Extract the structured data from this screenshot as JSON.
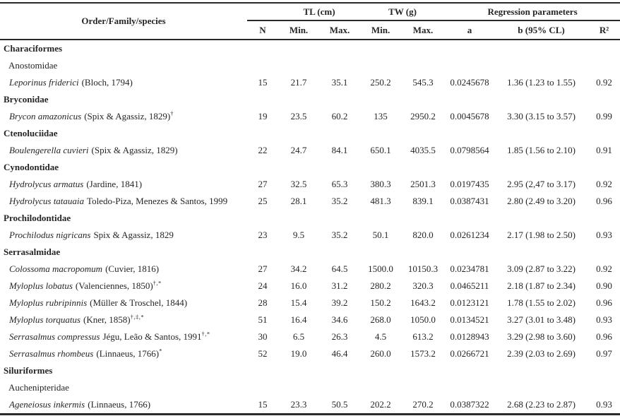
{
  "table": {
    "header": {
      "species": "Order/Family/species",
      "groups": {
        "tl": "TL (cm)",
        "tw": "TW (g)",
        "regression": "Regression parameters"
      },
      "cols": {
        "n": "N",
        "tl_min": "Min.",
        "tl_max": "Max.",
        "tw_min": "Min.",
        "tw_max": "Max.",
        "a": "a",
        "b": "b (95% CL)",
        "r2": "R²"
      }
    },
    "rows": [
      {
        "kind": "order",
        "name": "Characiformes"
      },
      {
        "kind": "family",
        "name": "Anostomidae",
        "bold": false
      },
      {
        "kind": "species",
        "name": "Leporinus friderici",
        "author": "(Bloch, 1794)",
        "marker": "",
        "n": "15",
        "tl_min": "21.7",
        "tl_max": "35.1",
        "tw_min": "250.2",
        "tw_max": "545.3",
        "a": "0.0245678",
        "b": "1.36 (1.23 to 1.55)",
        "r2": "0.92"
      },
      {
        "kind": "family",
        "name": "Bryconidae",
        "bold": true
      },
      {
        "kind": "species",
        "name": "Brycon amazonicus",
        "author": "(Spix & Agassiz, 1829)",
        "marker": "†",
        "n": "19",
        "tl_min": "23.5",
        "tl_max": "60.2",
        "tw_min": "135",
        "tw_max": "2950.2",
        "a": "0.0045678",
        "b": "3.30 (3.15 to 3.57)",
        "r2": "0.99"
      },
      {
        "kind": "family",
        "name": "Ctenoluciidae",
        "bold": true
      },
      {
        "kind": "species",
        "name": "Boulengerella cuvieri",
        "author": "(Spix & Agassiz, 1829)",
        "marker": "",
        "n": "22",
        "tl_min": "24.7",
        "tl_max": "84.1",
        "tw_min": "650.1",
        "tw_max": "4035.5",
        "a": "0.0798564",
        "b": "1.85 (1.56 to 2.10)",
        "r2": "0.91"
      },
      {
        "kind": "family",
        "name": "Cynodontidae",
        "bold": true
      },
      {
        "kind": "species",
        "name": "Hydrolycus armatus",
        "author": "(Jardine, 1841)",
        "marker": "",
        "n": "27",
        "tl_min": "32.5",
        "tl_max": "65.3",
        "tw_min": "380.3",
        "tw_max": "2501.3",
        "a": "0.0197435",
        "b": "2.95 (2,47 to 3.17)",
        "r2": "0.92"
      },
      {
        "kind": "species",
        "name": "Hydrolycus tatauaia",
        "author": "Toledo-Piza, Menezes & Santos, 1999",
        "marker": "",
        "n": "25",
        "tl_min": "28.1",
        "tl_max": "35.2",
        "tw_min": "481.3",
        "tw_max": "839.1",
        "a": "0.0387431",
        "b": "2.80 (2.49 to 3.20)",
        "r2": "0.96"
      },
      {
        "kind": "family",
        "name": "Prochilodontidae",
        "bold": true
      },
      {
        "kind": "species",
        "name": "Prochilodus nigricans",
        "author": "Spix & Agassiz, 1829",
        "marker": "",
        "n": "23",
        "tl_min": "9.5",
        "tl_max": "35.2",
        "tw_min": "50.1",
        "tw_max": "820.0",
        "a": "0.0261234",
        "b": "2.17 (1.98 to 2.50)",
        "r2": "0.93"
      },
      {
        "kind": "family",
        "name": "Serrasalmidae",
        "bold": true
      },
      {
        "kind": "species",
        "name": "Colossoma macropomum",
        "author": "(Cuvier, 1816)",
        "marker": "",
        "n": "27",
        "tl_min": "34.2",
        "tl_max": "64.5",
        "tw_min": "1500.0",
        "tw_max": "10150.3",
        "a": "0.0234781",
        "b": "3.09 (2.87 to 3.22)",
        "r2": "0.92"
      },
      {
        "kind": "species",
        "name": "Myloplus lobatus",
        "author": "(Valenciennes, 1850)",
        "marker": "†,*",
        "n": "24",
        "tl_min": "16.0",
        "tl_max": "31.2",
        "tw_min": "280.2",
        "tw_max": "320.3",
        "a": "0.0465211",
        "b": "2.18 (1.87 to 2.34)",
        "r2": "0.90"
      },
      {
        "kind": "species",
        "name": "Myloplus rubripinnis",
        "author": "(Müller & Troschel, 1844)",
        "marker": "",
        "n": "28",
        "tl_min": "15.4",
        "tl_max": "39.2",
        "tw_min": "150.2",
        "tw_max": "1643.2",
        "a": "0.0123121",
        "b": "1.78 (1.55 to 2.02)",
        "r2": "0.96"
      },
      {
        "kind": "species",
        "name": "Myloplus torquatus",
        "author": "(Kner, 1858)",
        "marker": "†,‡,*",
        "n": "51",
        "tl_min": "16.4",
        "tl_max": "34.6",
        "tw_min": "268.0",
        "tw_max": "1050.0",
        "a": "0.0134521",
        "b": "3.27 (3.01 to 3.48)",
        "r2": "0.93"
      },
      {
        "kind": "species",
        "name": "Serrasalmus compressus",
        "author": "Jégu, Leão & Santos, 1991",
        "marker": "†,*",
        "n": "30",
        "tl_min": "6.5",
        "tl_max": "26.3",
        "tw_min": "4.5",
        "tw_max": "613.2",
        "a": "0.0128943",
        "b": "3.29 (2.98 to 3.60)",
        "r2": "0.96"
      },
      {
        "kind": "species",
        "name": "Serrasalmus rhombeus",
        "author": "(Linnaeus, 1766)",
        "marker": "*",
        "n": "52",
        "tl_min": "19.0",
        "tl_max": "46.4",
        "tw_min": "260.0",
        "tw_max": "1573.2",
        "a": "0.0266721",
        "b": "2.39 (2.03 to 2.69)",
        "r2": "0.97"
      },
      {
        "kind": "order",
        "name": "Siluriformes"
      },
      {
        "kind": "family",
        "name": "Auchenipteridae",
        "bold": false
      },
      {
        "kind": "species",
        "name": "Ageneiosus inkermis",
        "author": "(Linnaeus, 1766)",
        "marker": "",
        "n": "15",
        "tl_min": "23.3",
        "tl_max": "50.5",
        "tw_min": "202.2",
        "tw_max": "270.2",
        "a": "0.0387322",
        "b": "2.68 (2.23 to 2.87)",
        "r2": "0.93"
      }
    ]
  }
}
